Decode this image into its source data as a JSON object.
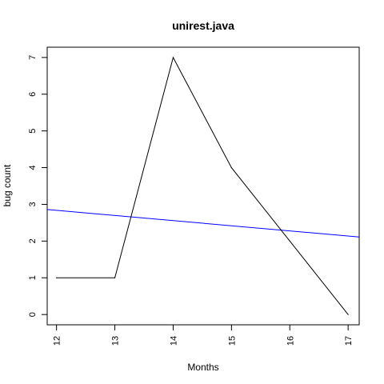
{
  "chart_data": {
    "type": "line",
    "title": "unirest.java",
    "xlabel": "Months",
    "ylabel": "bug count",
    "x_ticks": [
      "12",
      "13",
      "14",
      "15",
      "16",
      "17"
    ],
    "y_ticks": [
      "0",
      "1",
      "2",
      "3",
      "4",
      "5",
      "6",
      "7"
    ],
    "xlim": [
      11.84,
      17.19
    ],
    "ylim": [
      -0.28,
      7.28
    ],
    "grid": false,
    "series": [
      {
        "x": [
          12,
          13,
          14,
          15,
          16,
          17
        ],
        "y": [
          1,
          1,
          7,
          4,
          2,
          0
        ],
        "color": "#000000"
      }
    ],
    "trend_line": {
      "x": [
        11.84,
        17.19
      ],
      "y": [
        2.86,
        2.11
      ],
      "color": "#0000ff"
    }
  }
}
